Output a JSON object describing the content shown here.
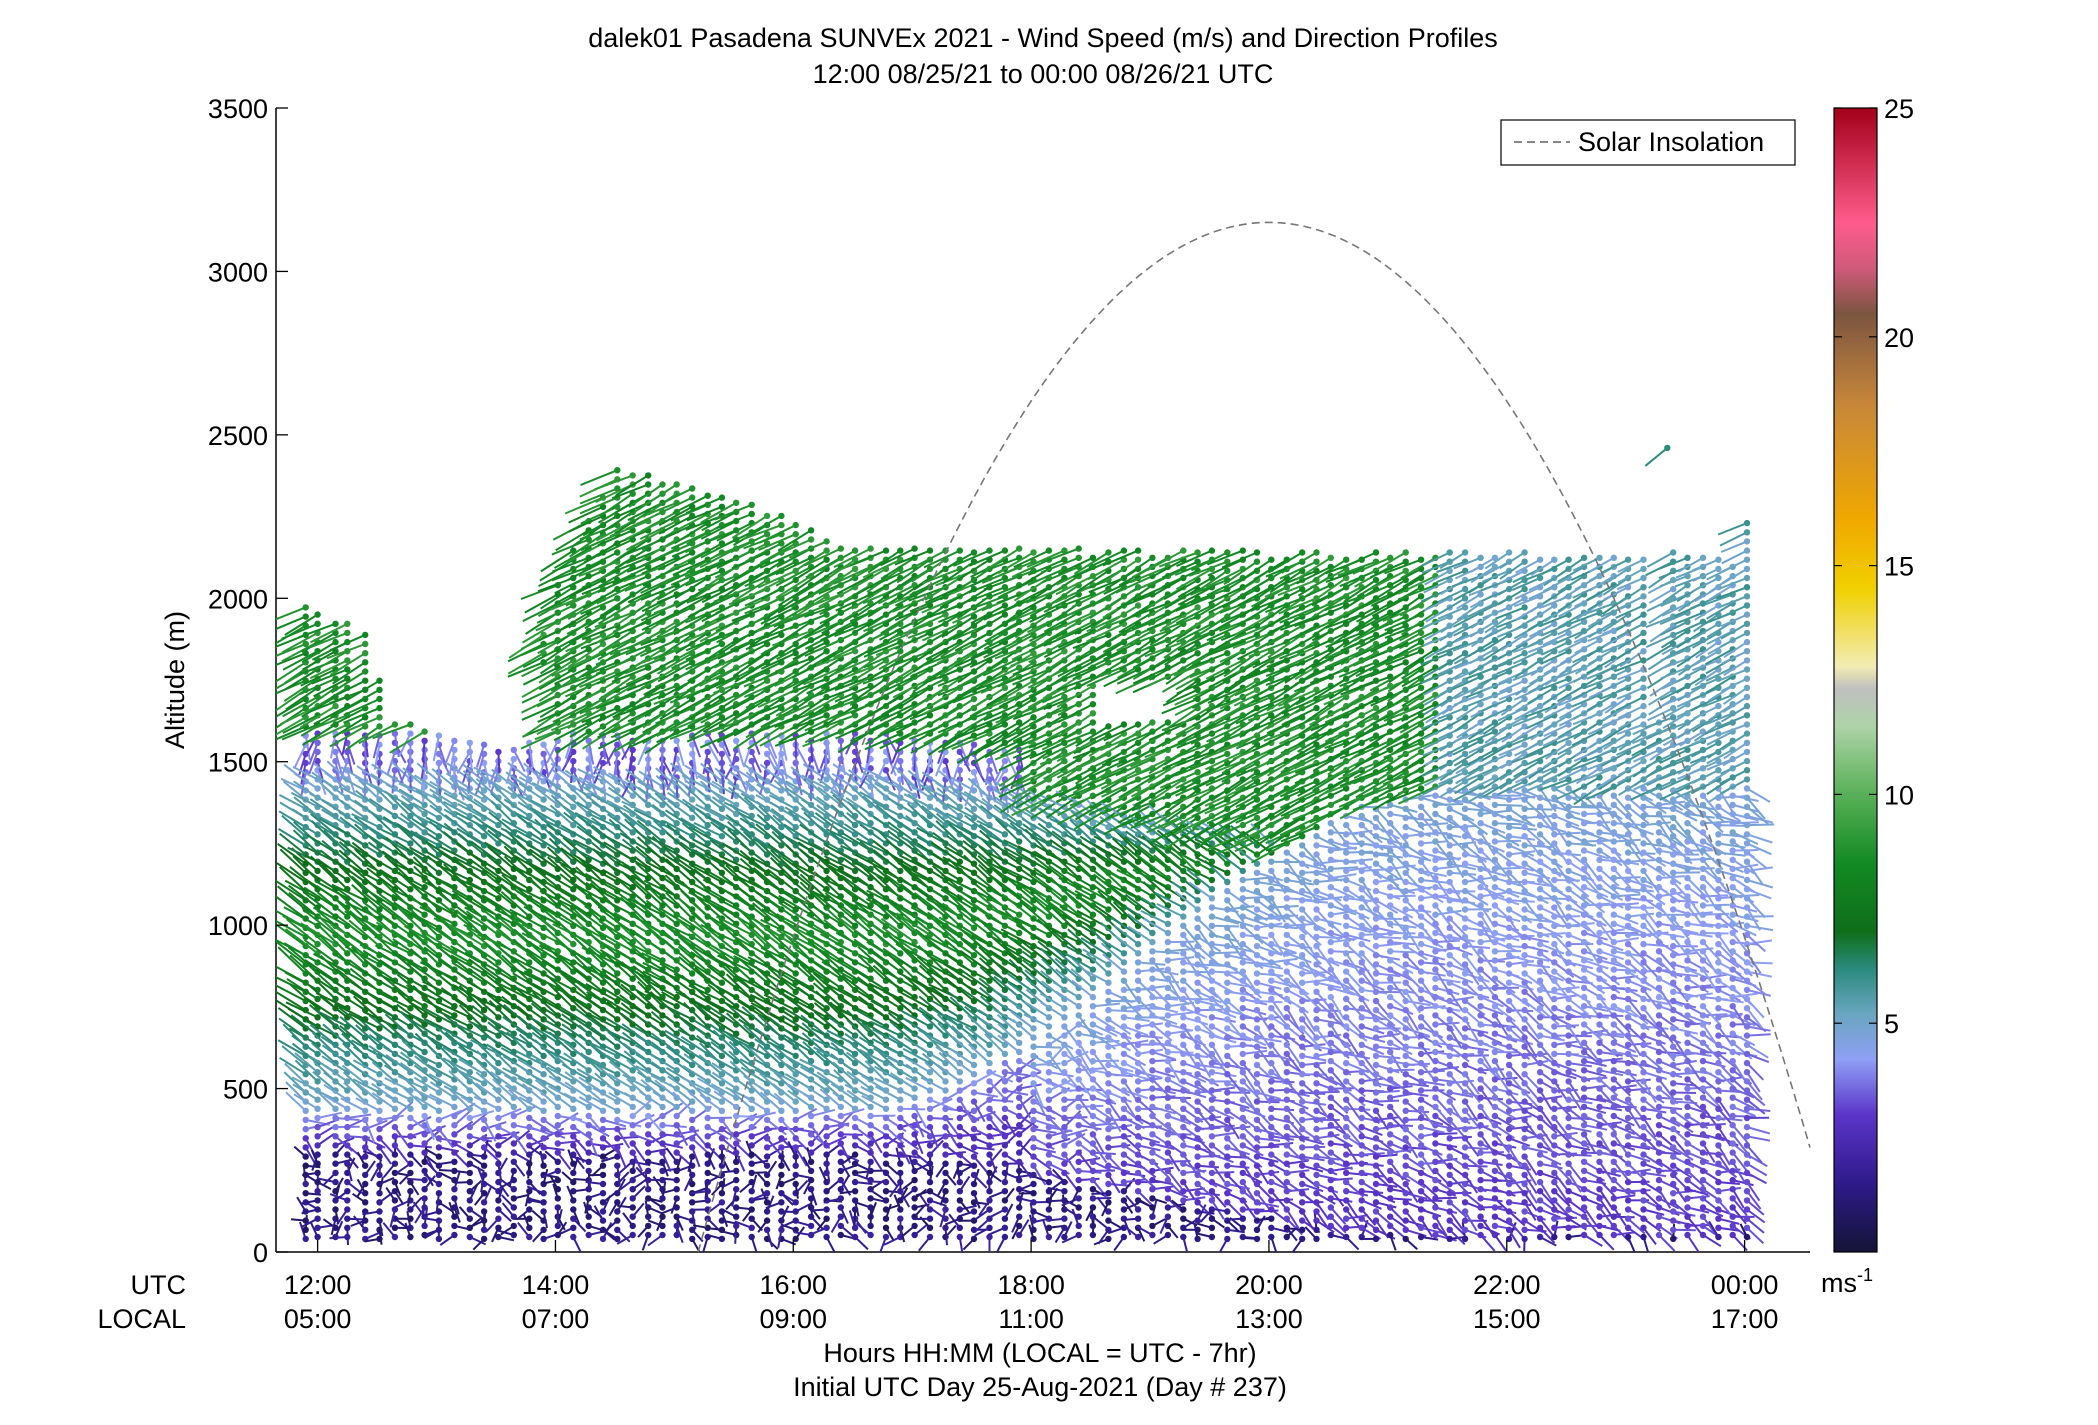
{
  "chart_data": {
    "type": "scatter",
    "title": "dalek01 Pasadena SUNVEx 2021 - Wind Speed (m/s) and Direction Profiles",
    "subtitle": "12:00 08/25/21 to 00:00 08/26/21  UTC",
    "ylabel": "Altitude (m)",
    "xlabel": "Hours HH:MM  (LOCAL = UTC - 7hr)",
    "xlabel2": "Initial UTC Day 25-Aug-2021 (Day # 237)",
    "xaxis_row_labels": [
      "UTC",
      "LOCAL"
    ],
    "x_ticks_utc": [
      "12:00",
      "14:00",
      "16:00",
      "18:00",
      "20:00",
      "22:00",
      "00:00"
    ],
    "x_ticks_local": [
      "05:00",
      "07:00",
      "09:00",
      "11:00",
      "13:00",
      "15:00",
      "17:00"
    ],
    "x_tick_hours": [
      12,
      14,
      16,
      18,
      20,
      22,
      24
    ],
    "xlim_hours_utc": [
      11.65,
      24.55
    ],
    "ylim": [
      0,
      3500
    ],
    "y_ticks": [
      "0",
      "500",
      "1000",
      "1500",
      "2000",
      "2500",
      "3000",
      "3500"
    ],
    "y_tick_values": [
      0,
      500,
      1000,
      1500,
      2000,
      2500,
      3000,
      3500
    ],
    "legend": {
      "entries": [
        "Solar Insolation"
      ],
      "position": "top-right",
      "line_color": "#777777",
      "line_style": "dashed"
    },
    "solar_insolation": {
      "name": "Solar Insolation",
      "peak_hour_utc": 20.0,
      "peak_altitude": 3150,
      "half_width_hours": 4.8,
      "sunrise_hour_utc": 13.6
    },
    "colorbar": {
      "ticks": [
        "5",
        "10",
        "15",
        "20",
        "25"
      ],
      "tick_values": [
        5,
        10,
        15,
        20,
        25
      ],
      "range": [
        0,
        25
      ],
      "unit_label": "ms",
      "unit_exponent": "-1",
      "stops": [
        {
          "v": 0.0,
          "c": "#141436"
        },
        {
          "v": 1.5,
          "c": "#2e1a8a"
        },
        {
          "v": 3.0,
          "c": "#5b35c9"
        },
        {
          "v": 4.2,
          "c": "#8f9ff5"
        },
        {
          "v": 5.2,
          "c": "#6aa6c0"
        },
        {
          "v": 6.2,
          "c": "#2a8a7c"
        },
        {
          "v": 7.0,
          "c": "#0f6e1a"
        },
        {
          "v": 8.5,
          "c": "#138a24"
        },
        {
          "v": 10.0,
          "c": "#59b058"
        },
        {
          "v": 11.5,
          "c": "#aed3a8"
        },
        {
          "v": 12.3,
          "c": "#bfbfbf"
        },
        {
          "v": 12.8,
          "c": "#f2ecb3"
        },
        {
          "v": 14.5,
          "c": "#f0d000"
        },
        {
          "v": 16.0,
          "c": "#f0a800"
        },
        {
          "v": 18.5,
          "c": "#c8873a"
        },
        {
          "v": 20.5,
          "c": "#7b5540"
        },
        {
          "v": 21.5,
          "c": "#d05a7a"
        },
        {
          "v": 22.5,
          "c": "#ff5c8c"
        },
        {
          "v": 25.0,
          "c": "#a3001a"
        }
      ]
    },
    "barb_times_hours": [
      11.9,
      12.0,
      12.15,
      12.25,
      12.4,
      12.52,
      12.65,
      12.78,
      12.9,
      13.02,
      13.15,
      13.28,
      13.4,
      13.52,
      13.65,
      13.78,
      13.9,
      14.02,
      14.15,
      14.28,
      14.4,
      14.52,
      14.65,
      14.78,
      14.9,
      15.02,
      15.15,
      15.28,
      15.4,
      15.52,
      15.65,
      15.78,
      15.9,
      16.02,
      16.15,
      16.28,
      16.4,
      16.52,
      16.65,
      16.78,
      16.9,
      17.02,
      17.15,
      17.28,
      17.4,
      17.52,
      17.65,
      17.78,
      17.9,
      18.02,
      18.15,
      18.28,
      18.4,
      18.52,
      18.65,
      18.78,
      18.9,
      19.02,
      19.15,
      19.28,
      19.4,
      19.52,
      19.65,
      19.78,
      19.9,
      20.02,
      20.15,
      20.28,
      20.4,
      20.52,
      20.65,
      20.78,
      20.9,
      21.02,
      21.15,
      21.28,
      21.4,
      21.52,
      21.65,
      21.78,
      21.9,
      22.02,
      22.15,
      22.28,
      22.4,
      22.52,
      22.65,
      22.78,
      22.9,
      23.02,
      23.15,
      23.28,
      23.4,
      23.52,
      23.65,
      23.78,
      23.9,
      24.02
    ],
    "barb_altitude_spacing_m": 28,
    "profile_top_m": [
      {
        "hour": 11.9,
        "top": 1980
      },
      {
        "hour": 12.4,
        "top": 1900
      },
      {
        "hour": 12.65,
        "top": 1640
      },
      {
        "hour": 13.65,
        "top": 1540
      },
      {
        "hour": 14.02,
        "top": 2060
      },
      {
        "hour": 14.52,
        "top": 2400
      },
      {
        "hour": 15.02,
        "top": 2360
      },
      {
        "hour": 15.4,
        "top": 2330
      },
      {
        "hour": 16.02,
        "top": 2240
      },
      {
        "hour": 16.4,
        "top": 2160
      },
      {
        "hour": 21.52,
        "top": 2140
      },
      {
        "hour": 23.15,
        "top": 2140
      },
      {
        "hour": 23.28,
        "top": 1640
      },
      {
        "hour": 23.4,
        "top": 2160
      },
      {
        "hour": 23.9,
        "top": 2120
      },
      {
        "hour": 24.02,
        "top": 2230
      }
    ],
    "isolated_point": {
      "hour": 23.35,
      "altitude": 2460,
      "speed": 6.2
    },
    "speed_layers_description_values": {
      "surface_speed_m_s": 0.8,
      "nocturnal_jet_speed_m_s": 8.5,
      "upper_layer_speed_m_s": 8.0,
      "afternoon_midlevel_speed_m_s": 3.0
    }
  }
}
